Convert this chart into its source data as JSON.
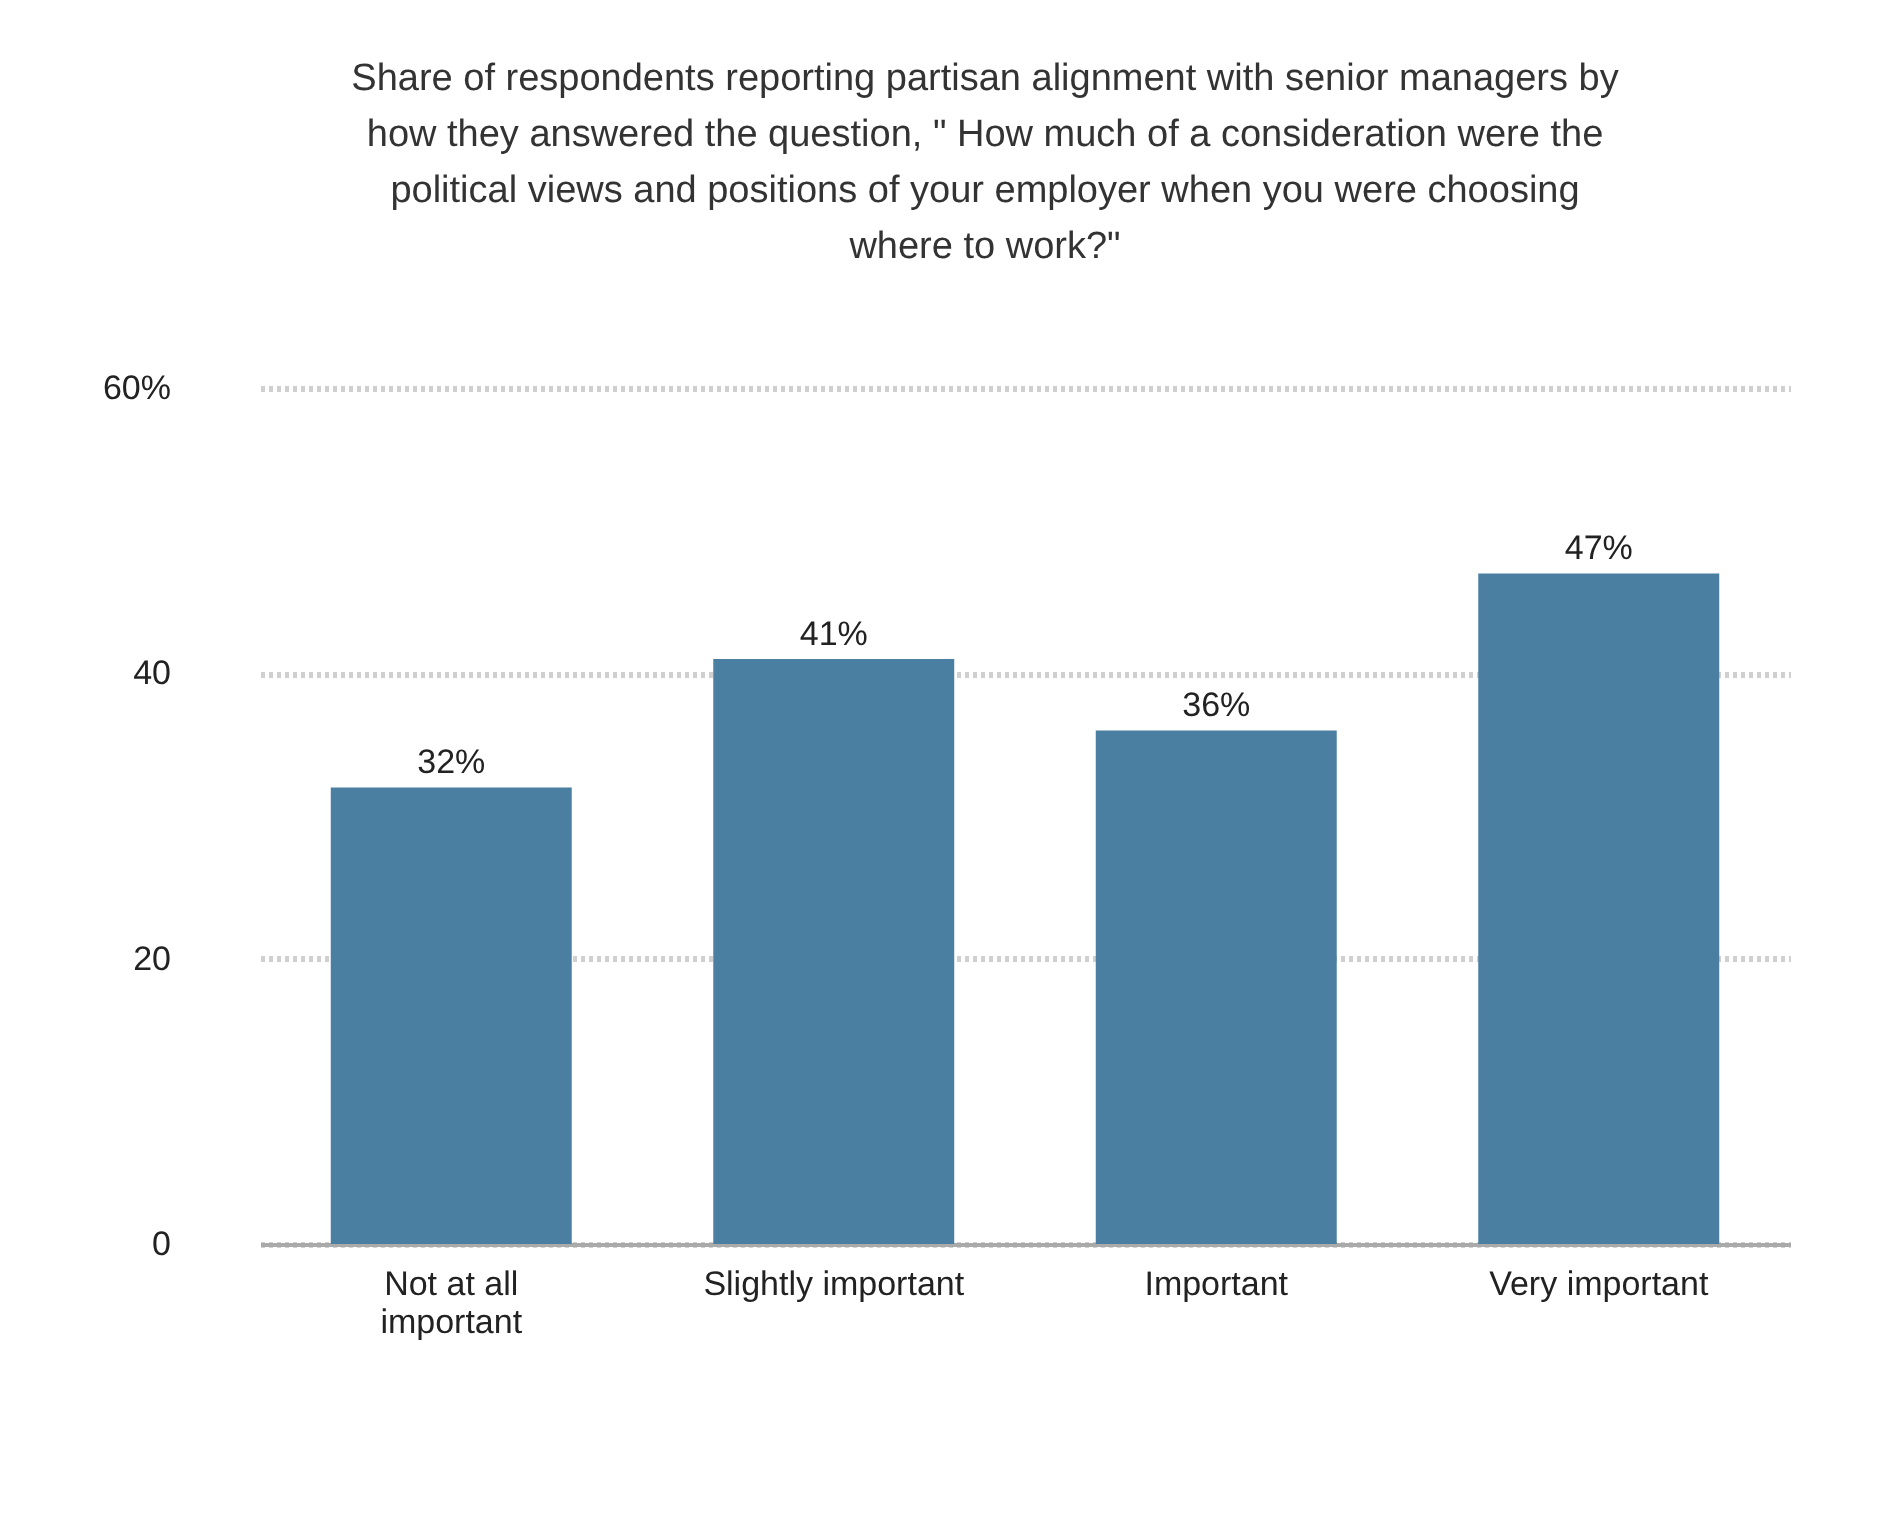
{
  "chart_data": {
    "type": "bar",
    "title": "Share of respondents reporting partisan alignment with senior managers by how they answered the question, \" How much of a consideration were the political views and positions of your employer when you were choosing where to work?\"",
    "categories": [
      "Not at all important",
      "Slightly important",
      "Important",
      "Very important"
    ],
    "values": [
      32,
      41,
      36,
      47
    ],
    "value_labels": [
      "32%",
      "41%",
      "36%",
      "47%"
    ],
    "color": "#4a7fa2",
    "ylim": [
      0,
      60
    ],
    "yticks": [
      0,
      20,
      40,
      {
        "value": 60,
        "label": "60%"
      }
    ],
    "grid": "y",
    "line_style": "dotted"
  }
}
